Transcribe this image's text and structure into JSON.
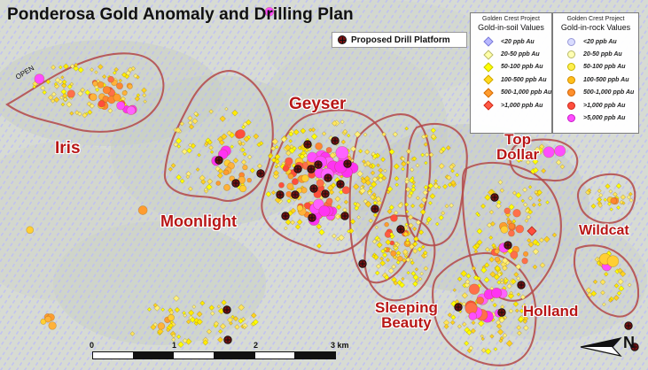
{
  "title": "Ponderosa Gold Anomaly and Drilling Plan",
  "drill_legend": {
    "label": "Proposed Drill Platform"
  },
  "soil_legend": {
    "header_small": "Golden Crest Project",
    "header_big": "Gold-in-soil Values",
    "items": [
      {
        "label": "<20 ppb Au",
        "shape": "diamond",
        "color": "#b8b7ff",
        "stroke": "#7b7bd8"
      },
      {
        "label": "20-50 ppb Au",
        "shape": "diamond",
        "color": "#ffffa8",
        "stroke": "#b9b96a"
      },
      {
        "label": "50-100 ppb Au",
        "shape": "diamond",
        "color": "#ffff00",
        "stroke": "#c5c500"
      },
      {
        "label": "100-500 ppb Au",
        "shape": "diamond",
        "color": "#ffd91e",
        "stroke": "#d0a700"
      },
      {
        "label": "500-1,000 ppb Au",
        "shape": "diamond",
        "color": "#ff9c2f",
        "stroke": "#d46a00"
      },
      {
        "label": ">1,000 ppb Au",
        "shape": "diamond",
        "color": "#ff5a45",
        "stroke": "#d02b1a"
      }
    ]
  },
  "rock_legend": {
    "header_small": "Golden Crest Project",
    "header_big": "Gold-in-rock Values",
    "items": [
      {
        "label": "<20 ppb Au",
        "shape": "circle",
        "color": "#d9dcff",
        "stroke": "#9898d8"
      },
      {
        "label": "20-50 ppb Au",
        "shape": "circle",
        "color": "#ffffb3",
        "stroke": "#b9b96a"
      },
      {
        "label": "50-100 ppb Au",
        "shape": "circle",
        "color": "#fff04d",
        "stroke": "#c7b600"
      },
      {
        "label": "100-500 ppb Au",
        "shape": "circle",
        "color": "#ffbf1b",
        "stroke": "#d38c00"
      },
      {
        "label": "500-1,000 ppb Au",
        "shape": "circle",
        "color": "#ff8f2d",
        "stroke": "#cf6100"
      },
      {
        "label": ">1,000 ppb Au",
        "shape": "circle",
        "color": "#ff4e3d",
        "stroke": "#c92a1d"
      },
      {
        "label": ">5,000 ppb Au",
        "shape": "circle",
        "color": "#ff4dff",
        "stroke": "#c71cc7"
      }
    ]
  },
  "map_labels": {
    "iris": "Iris",
    "geyser": "Geyser",
    "moonlight": "Moonlight",
    "top_dollar_1": "Top",
    "top_dollar_2": "Dollar",
    "wildcat": "Wildcat",
    "sleeping_beauty_1": "Sleeping",
    "sleeping_beauty_2": "Beauty",
    "holland": "Holland",
    "open": "OPEN"
  },
  "scale": {
    "labels": [
      "0",
      "1",
      "2",
      "3 km"
    ]
  },
  "north_label": "N",
  "colors": {
    "outline": "#b44b4b",
    "drill": "#7a1010"
  }
}
